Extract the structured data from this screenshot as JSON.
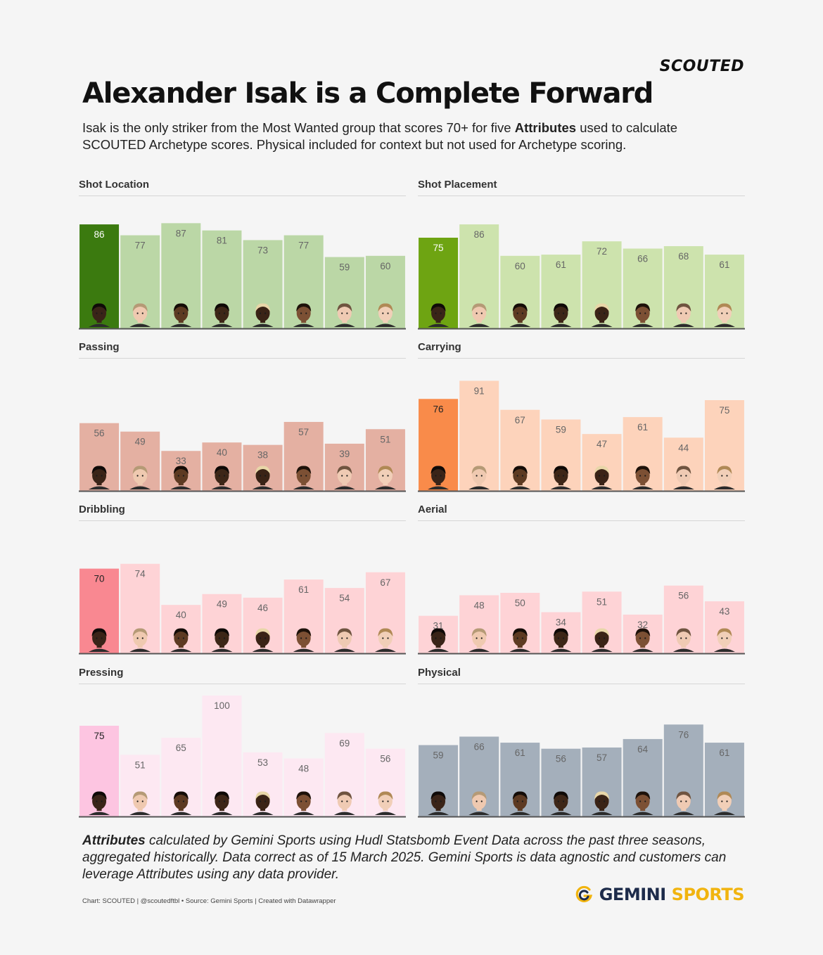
{
  "header": {
    "brand": "SCOUTED",
    "title": "Alexander Isak is a Complete Forward",
    "subtitle_pre": "Isak is the only striker from the Most Wanted group that scores 70+ for five ",
    "subtitle_bold": "Attributes",
    "subtitle_post": " used to calculate SCOUTED Archetype scores. Physical included for context but not used for Archetype scoring."
  },
  "chart_data": [
    {
      "type": "bar",
      "title": "Shot Location",
      "values": [
        86,
        77,
        87,
        81,
        73,
        77,
        59,
        60
      ],
      "ylim": [
        0,
        100
      ],
      "highlight_index": 0,
      "highlight_color": "#3b7a0f",
      "base_color": "#bbd7a6"
    },
    {
      "type": "bar",
      "title": "Shot Placement",
      "values": [
        75,
        86,
        60,
        61,
        72,
        66,
        68,
        61
      ],
      "ylim": [
        0,
        100
      ],
      "highlight_index": 0,
      "highlight_color": "#6ea412",
      "base_color": "#cde3ad"
    },
    {
      "type": "bar",
      "title": "Passing",
      "values": [
        56,
        49,
        33,
        40,
        38,
        57,
        39,
        51
      ],
      "ylim": [
        0,
        100
      ],
      "highlight_index": null,
      "highlight_color": "#e4b0a2",
      "base_color": "#e4b0a2"
    },
    {
      "type": "bar",
      "title": "Carrying",
      "values": [
        76,
        91,
        67,
        59,
        47,
        61,
        44,
        75
      ],
      "ylim": [
        0,
        100
      ],
      "highlight_index": 0,
      "highlight_color": "#f98b4a",
      "base_color": "#fdd3bb"
    },
    {
      "type": "bar",
      "title": "Dribbling",
      "values": [
        70,
        74,
        40,
        49,
        46,
        61,
        54,
        67
      ],
      "ylim": [
        0,
        100
      ],
      "highlight_index": 0,
      "highlight_color": "#f98891",
      "base_color": "#fed3d6"
    },
    {
      "type": "bar",
      "title": "Aerial",
      "values": [
        31,
        48,
        50,
        34,
        51,
        32,
        56,
        43
      ],
      "ylim": [
        0,
        100
      ],
      "highlight_index": null,
      "highlight_color": "#fed3d6",
      "base_color": "#fed3d6"
    },
    {
      "type": "bar",
      "title": "Pressing",
      "values": [
        75,
        51,
        65,
        100,
        53,
        48,
        69,
        56
      ],
      "ylim": [
        0,
        100
      ],
      "highlight_index": 0,
      "highlight_color": "#fdc5e1",
      "base_color": "#fde8f2"
    },
    {
      "type": "bar",
      "title": "Physical",
      "values": [
        59,
        66,
        61,
        56,
        57,
        64,
        76,
        61
      ],
      "ylim": [
        0,
        100
      ],
      "highlight_index": null,
      "highlight_color": "#a4afbb",
      "base_color": "#a4afbb"
    }
  ],
  "players": [
    {
      "skin": "#3a2418",
      "hair": "#0f0a08"
    },
    {
      "skin": "#efc9b0",
      "hair": "#b59a76"
    },
    {
      "skin": "#5d3a22",
      "hair": "#140c07"
    },
    {
      "skin": "#3d2617",
      "hair": "#0e0906"
    },
    {
      "skin": "#3a2316",
      "hair": "#e8d6a8"
    },
    {
      "skin": "#7c5034",
      "hair": "#1e120a"
    },
    {
      "skin": "#efcab3",
      "hair": "#6f5440"
    },
    {
      "skin": "#f1cfb8",
      "hair": "#b08955"
    }
  ],
  "footer": {
    "note_bold": "Attributes",
    "note_rest": " calculated by Gemini Sports using Hudl Statsbomb Event Data across the past three seasons, aggregated historically. Data correct as of 15 March 2025. Gemini Sports is data agnostic and customers can leverage Attributes using any data provider.",
    "credits": "Chart: SCOUTED | @scoutedftbl • Source: Gemini Sports | Created with Datawrapper",
    "logo_word1": "GEMINI",
    "logo_word2": "SPORTS"
  }
}
